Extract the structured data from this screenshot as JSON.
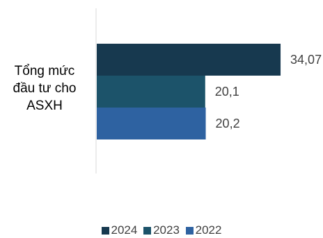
{
  "chart_data": {
    "type": "bar",
    "orientation": "horizontal",
    "categories": [
      "Tổng mức\nđầu tư cho\nASXH"
    ],
    "series": [
      {
        "name": "2024",
        "values": [
          34.07
        ],
        "label": "34,07",
        "color": "#17394f"
      },
      {
        "name": "2023",
        "values": [
          20.1
        ],
        "label": "20,1",
        "color": "#1c536a"
      },
      {
        "name": "2022",
        "values": [
          20.2
        ],
        "label": "20,2",
        "color": "#2e62a1"
      }
    ],
    "xlim": [
      0,
      40
    ],
    "grid": false,
    "legend_position": "bottom"
  }
}
